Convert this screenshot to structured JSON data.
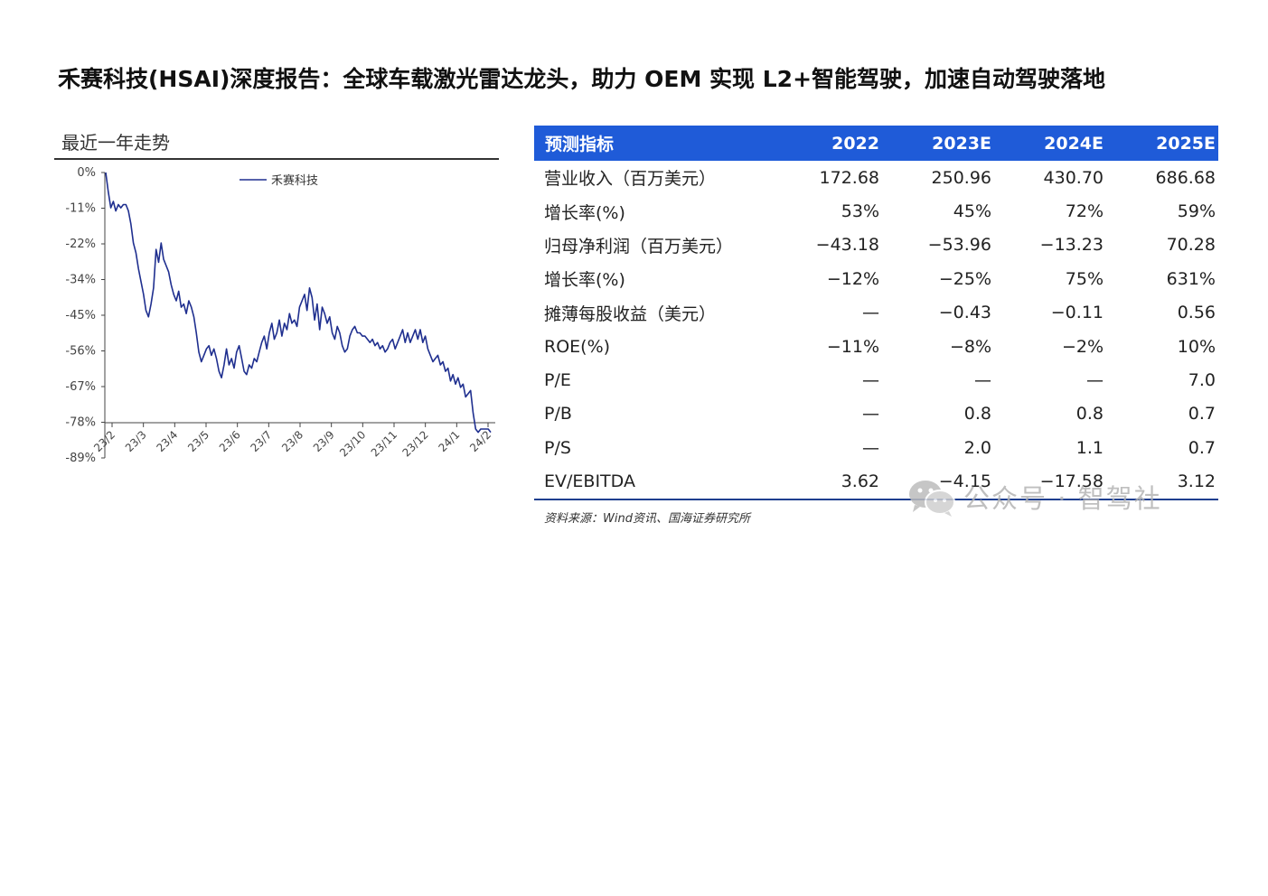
{
  "title": "禾赛科技(HSAI)深度报告：全球车载激光雷达龙头，助力 OEM 实现 L2+智能驾驶，加速自动驾驶落地",
  "watermark": "公众号 · 智驾社",
  "watermark_icon": "wechat-icon",
  "table": {
    "header": [
      "预测指标",
      "2022",
      "2023E",
      "2024E",
      "2025E"
    ],
    "rows": [
      [
        "营业收入（百万美元）",
        "172.68",
        "250.96",
        "430.70",
        "686.68"
      ],
      [
        "增长率(%)",
        "53%",
        "45%",
        "72%",
        "59%"
      ],
      [
        "归母净利润（百万美元）",
        "−43.18",
        "−53.96",
        "−13.23",
        "70.28"
      ],
      [
        "增长率(%)",
        "−12%",
        "−25%",
        "75%",
        "631%"
      ],
      [
        "摊薄每股收益（美元）",
        "—",
        "−0.43",
        "−0.11",
        "0.56"
      ],
      [
        "ROE(%)",
        "−11%",
        "−8%",
        "−2%",
        "10%"
      ],
      [
        "P/E",
        "—",
        "—",
        "—",
        "7.0"
      ],
      [
        "P/B",
        "—",
        "0.8",
        "0.8",
        "0.7"
      ],
      [
        "P/S",
        "—",
        "2.0",
        "1.1",
        "0.7"
      ],
      [
        "EV/EBITDA",
        "3.62",
        "−4.15",
        "−17.58",
        "3.12"
      ]
    ],
    "source": "资料来源：Wind资讯、国海证券研究所",
    "header_color": "#1f5bd8"
  },
  "chart_data": {
    "type": "line",
    "title": "最近一年走势",
    "series": [
      {
        "name": "禾赛科技",
        "color": "#1f2f8f",
        "values": [
          0,
          -6,
          -11,
          -9,
          -12,
          -10,
          -11,
          -10,
          -10,
          -12,
          -16,
          -22,
          -25,
          -30,
          -34,
          -38,
          -43,
          -45,
          -41,
          -36,
          -24,
          -28,
          -22,
          -27,
          -29,
          -31,
          -35,
          -38,
          -40,
          -37,
          -42,
          -41,
          -44,
          -40,
          -42,
          -45,
          -50,
          -56,
          -59,
          -57,
          -55,
          -54,
          -57,
          -55,
          -58,
          -62,
          -64,
          -60,
          -55,
          -60,
          -58,
          -61,
          -56,
          -54,
          -58,
          -62,
          -63,
          -60,
          -61,
          -58,
          -59,
          -56,
          -53,
          -51,
          -55,
          -50,
          -47,
          -52,
          -50,
          -46,
          -51,
          -47,
          -49,
          -44,
          -47,
          -46,
          -48,
          -42,
          -40,
          -38,
          -43,
          -36,
          -39,
          -46,
          -41,
          -49,
          -42,
          -44,
          -47,
          -45,
          -50,
          -52,
          -48,
          -50,
          -54,
          -56,
          -55,
          -51,
          -49,
          -48,
          -50,
          -50,
          -51,
          -51,
          -52,
          -53,
          -52,
          -54,
          -53,
          -55,
          -54,
          -56,
          -55,
          -53,
          -52,
          -55,
          -53,
          -51,
          -49,
          -53,
          -50,
          -53,
          -51,
          -49,
          -52,
          -49,
          -53,
          -51,
          -55,
          -57,
          -59,
          -58,
          -57,
          -60,
          -59,
          -62,
          -61,
          -65,
          -63,
          -66,
          -64,
          -67,
          -66,
          -70,
          -69,
          -68,
          -75,
          -80,
          -81,
          -80,
          -80,
          -80,
          -80,
          -81
        ]
      }
    ],
    "x_tick_labels": [
      "23/2",
      "23/3",
      "23/4",
      "23/5",
      "23/6",
      "23/7",
      "23/8",
      "23/9",
      "23/10",
      "23/11",
      "23/12",
      "24/1",
      "24/2"
    ],
    "y_tick_labels": [
      "0%",
      "-11%",
      "-22%",
      "-34%",
      "-45%",
      "-56%",
      "-67%",
      "-78%",
      "-89%"
    ],
    "ylim": [
      -89,
      0
    ],
    "ylabel": "",
    "xlabel": "",
    "legend_position": "top",
    "grid": false
  }
}
